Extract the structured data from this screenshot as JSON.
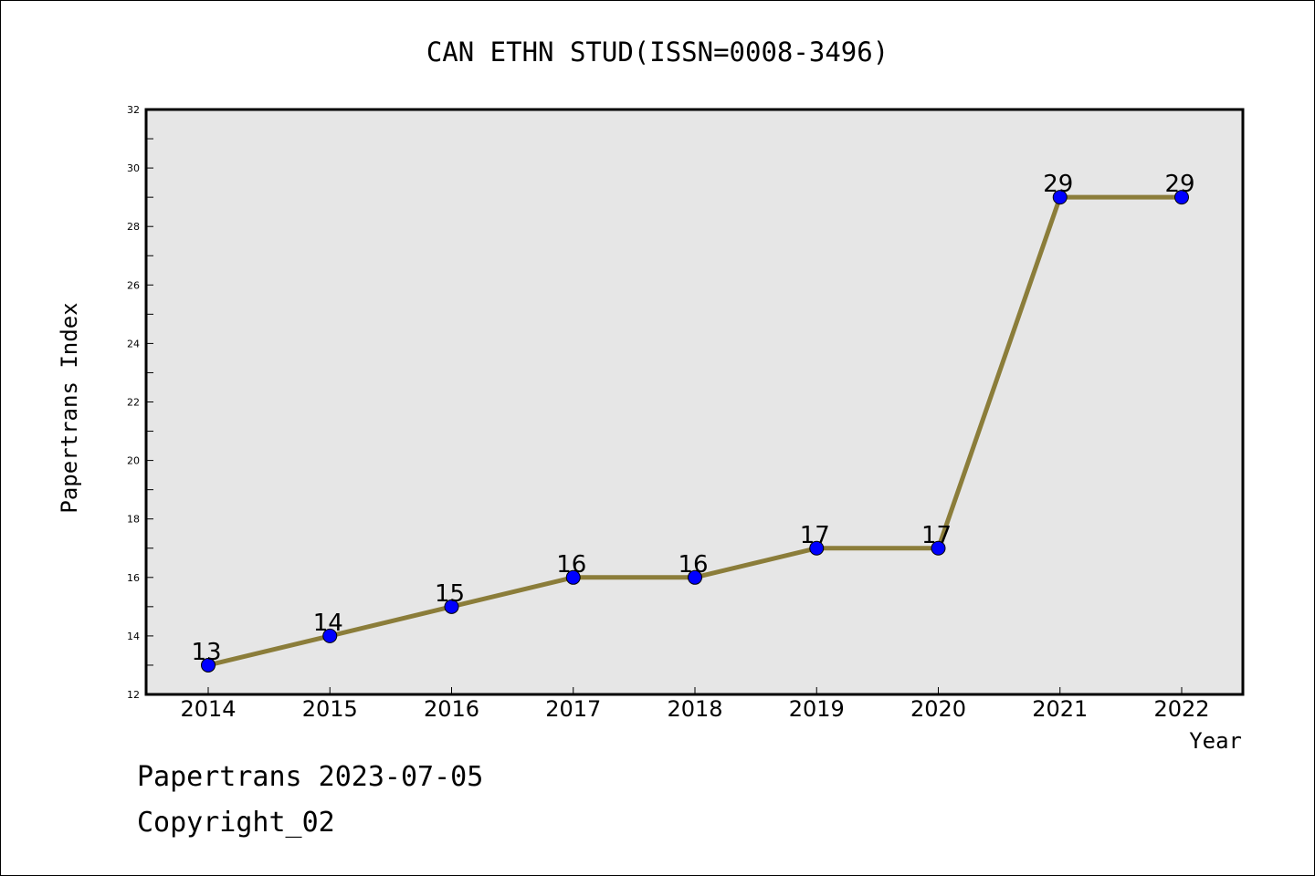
{
  "chart_data": {
    "type": "line",
    "title": "CAN ETHN STUD(ISSN=0008-3496)",
    "xlabel": "Year",
    "ylabel": "Papertrans Index",
    "categories": [
      "2014",
      "2015",
      "2016",
      "2017",
      "2018",
      "2019",
      "2020",
      "2021",
      "2022"
    ],
    "series": [
      {
        "values": [
          13,
          14,
          15,
          16,
          16,
          17,
          17,
          29,
          29
        ]
      }
    ],
    "data_labels": [
      "13",
      "14",
      "15",
      "16",
      "16",
      "17",
      "17",
      "29",
      "29"
    ],
    "ylim": [
      12,
      32
    ],
    "yticks": [
      "12",
      "14",
      "16",
      "18",
      "20",
      "22",
      "24",
      "26",
      "28",
      "30",
      "32"
    ],
    "grid": false,
    "line_color": "#8B7D3A",
    "marker_color": "#0000FF",
    "plot_background": "#E6E6E6"
  },
  "footer": {
    "line1": "Papertrans 2023-07-05",
    "line2": "Copyright_02"
  }
}
